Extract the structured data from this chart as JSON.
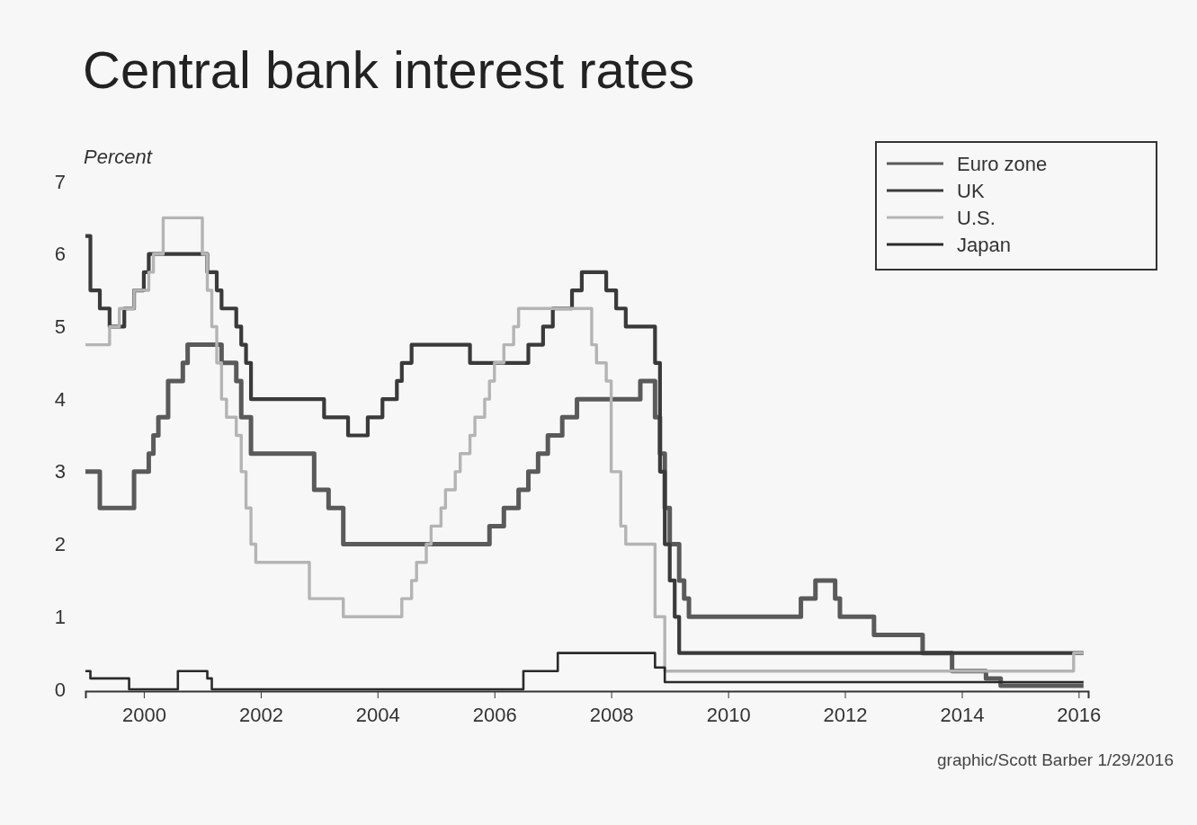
{
  "chart_data": {
    "type": "step",
    "title": "Central bank interest rates",
    "ylabel": "Percent",
    "annotations": [
      "graphic/Scott Barber 1/29/2016"
    ],
    "xlim": [
      "1999-01",
      "2016-03"
    ],
    "xticks": [
      "2000",
      "2002",
      "2004",
      "2006",
      "2008",
      "2010",
      "2012",
      "2014",
      "2016"
    ],
    "ylim": [
      0,
      7
    ],
    "yticks": [
      0,
      1,
      2,
      3,
      4,
      5,
      6,
      7
    ],
    "grid": false,
    "legend": "top right",
    "line_style": "solid",
    "marker": "none",
    "series": [
      {
        "name": "Euro zone",
        "color": "#5a5a5a",
        "x": [
          "1999-01",
          "1999-04",
          "1999-11",
          "2000-02",
          "2000-03",
          "2000-04",
          "2000-06",
          "2000-09",
          "2000-10",
          "2001-05",
          "2001-08",
          "2001-09",
          "2001-11",
          "2002-12",
          "2003-03",
          "2003-06",
          "2005-12",
          "2006-03",
          "2006-06",
          "2006-08",
          "2006-10",
          "2006-12",
          "2007-03",
          "2007-06",
          "2008-07",
          "2008-10",
          "2008-11",
          "2008-12",
          "2009-01",
          "2009-03",
          "2009-04",
          "2009-05",
          "2011-04",
          "2011-07",
          "2011-11",
          "2011-12",
          "2012-07",
          "2013-05",
          "2013-11",
          "2014-06",
          "2014-09",
          "2016-02"
        ],
        "values": [
          3.0,
          2.5,
          3.0,
          3.25,
          3.5,
          3.75,
          4.25,
          4.5,
          4.75,
          4.5,
          4.25,
          3.75,
          3.25,
          2.75,
          2.5,
          2.0,
          2.25,
          2.5,
          2.75,
          3.0,
          3.25,
          3.5,
          3.75,
          4.0,
          4.25,
          3.75,
          3.25,
          2.5,
          2.0,
          1.5,
          1.25,
          1.0,
          1.25,
          1.5,
          1.25,
          1.0,
          0.75,
          0.5,
          0.25,
          0.15,
          0.05,
          0.05
        ]
      },
      {
        "name": "UK",
        "color": "#3a3a3a",
        "x": [
          "1999-01",
          "1999-02",
          "1999-04",
          "1999-06",
          "1999-09",
          "1999-11",
          "2000-01",
          "2000-02",
          "2001-02",
          "2001-04",
          "2001-05",
          "2001-08",
          "2001-09",
          "2001-10",
          "2001-11",
          "2003-02",
          "2003-07",
          "2003-11",
          "2004-02",
          "2004-05",
          "2004-06",
          "2004-08",
          "2005-08",
          "2006-08",
          "2006-11",
          "2007-01",
          "2007-05",
          "2007-07",
          "2007-12",
          "2008-02",
          "2008-04",
          "2008-10",
          "2008-11",
          "2008-12",
          "2009-01",
          "2009-02",
          "2009-03",
          "2016-02"
        ],
        "values": [
          6.25,
          5.5,
          5.25,
          5.0,
          5.25,
          5.5,
          5.75,
          6.0,
          5.75,
          5.5,
          5.25,
          5.0,
          4.75,
          4.5,
          4.0,
          3.75,
          3.5,
          3.75,
          4.0,
          4.25,
          4.5,
          4.75,
          4.5,
          4.75,
          5.0,
          5.25,
          5.5,
          5.75,
          5.5,
          5.25,
          5.0,
          4.5,
          3.0,
          2.0,
          1.5,
          1.0,
          0.5,
          0.5
        ]
      },
      {
        "name": "U.S.",
        "color": "#b4b4b4",
        "x": [
          "1999-01",
          "1999-06",
          "1999-08",
          "1999-11",
          "2000-02",
          "2000-03",
          "2000-05",
          "2001-01",
          "2001-02",
          "2001-03",
          "2001-04",
          "2001-05",
          "2001-06",
          "2001-08",
          "2001-09",
          "2001-10",
          "2001-11",
          "2001-12",
          "2002-11",
          "2003-06",
          "2004-06",
          "2004-08",
          "2004-09",
          "2004-11",
          "2004-12",
          "2005-02",
          "2005-03",
          "2005-05",
          "2005-06",
          "2005-08",
          "2005-09",
          "2005-11",
          "2005-12",
          "2006-01",
          "2006-03",
          "2006-05",
          "2006-06",
          "2007-09",
          "2007-10",
          "2007-12",
          "2008-01",
          "2008-03",
          "2008-04",
          "2008-10",
          "2008-12",
          "2015-12",
          "2016-02"
        ],
        "values": [
          4.75,
          5.0,
          5.25,
          5.5,
          5.75,
          6.0,
          6.5,
          6.0,
          5.5,
          5.0,
          4.5,
          4.0,
          3.75,
          3.5,
          3.0,
          2.5,
          2.0,
          1.75,
          1.25,
          1.0,
          1.25,
          1.5,
          1.75,
          2.0,
          2.25,
          2.5,
          2.75,
          3.0,
          3.25,
          3.5,
          3.75,
          4.0,
          4.25,
          4.5,
          4.75,
          5.0,
          5.25,
          4.75,
          4.5,
          4.25,
          3.0,
          2.25,
          2.0,
          1.0,
          0.25,
          0.5,
          0.5
        ]
      },
      {
        "name": "Japan",
        "color": "#2a2a2a",
        "x": [
          "1999-01",
          "1999-02",
          "1999-10",
          "2000-08",
          "2001-02",
          "2001-03",
          "2006-07",
          "2007-02",
          "2008-10",
          "2008-12",
          "2016-02"
        ],
        "values": [
          0.25,
          0.15,
          0.0,
          0.25,
          0.15,
          0.0,
          0.25,
          0.5,
          0.3,
          0.1,
          0.1
        ]
      }
    ]
  }
}
